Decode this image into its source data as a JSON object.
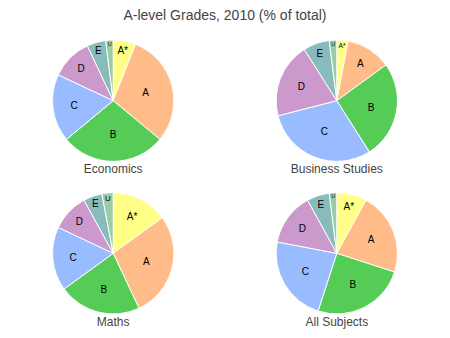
{
  "title": "A-level Grades, 2010 (% of total)",
  "chart_data": [
    {
      "type": "pie",
      "title": "Economics",
      "categories": [
        "A*",
        "A",
        "B",
        "C",
        "D",
        "E",
        "U"
      ],
      "values": [
        6,
        30,
        28,
        18,
        11,
        5,
        2
      ],
      "colors": [
        "#ffff88",
        "#ffbb88",
        "#55cc55",
        "#99bbff",
        "#cc99cc",
        "#88bbbb",
        "#99ccaa"
      ]
    },
    {
      "type": "pie",
      "title": "Business Studies",
      "categories": [
        "A*",
        "A",
        "B",
        "C",
        "D",
        "E",
        "U"
      ],
      "values": [
        3,
        12,
        26,
        30,
        20,
        7,
        2
      ],
      "colors": [
        "#ffff88",
        "#ffbb88",
        "#55cc55",
        "#99bbff",
        "#cc99cc",
        "#88bbbb",
        "#99ccaa"
      ]
    },
    {
      "type": "pie",
      "title": "Maths",
      "categories": [
        "A*",
        "A",
        "B",
        "C",
        "D",
        "E",
        "U"
      ],
      "values": [
        15,
        28,
        22,
        17,
        10,
        5,
        3
      ],
      "colors": [
        "#ffff88",
        "#ffbb88",
        "#55cc55",
        "#99bbff",
        "#cc99cc",
        "#88bbbb",
        "#99ccaa"
      ]
    },
    {
      "type": "pie",
      "title": "All Subjects",
      "categories": [
        "A*",
        "A",
        "B",
        "C",
        "D",
        "E",
        "U"
      ],
      "values": [
        8,
        22,
        25,
        23,
        14,
        6,
        2
      ],
      "colors": [
        "#ffff88",
        "#ffbb88",
        "#55cc55",
        "#99bbff",
        "#cc99cc",
        "#88bbbb",
        "#99ccaa"
      ]
    }
  ]
}
